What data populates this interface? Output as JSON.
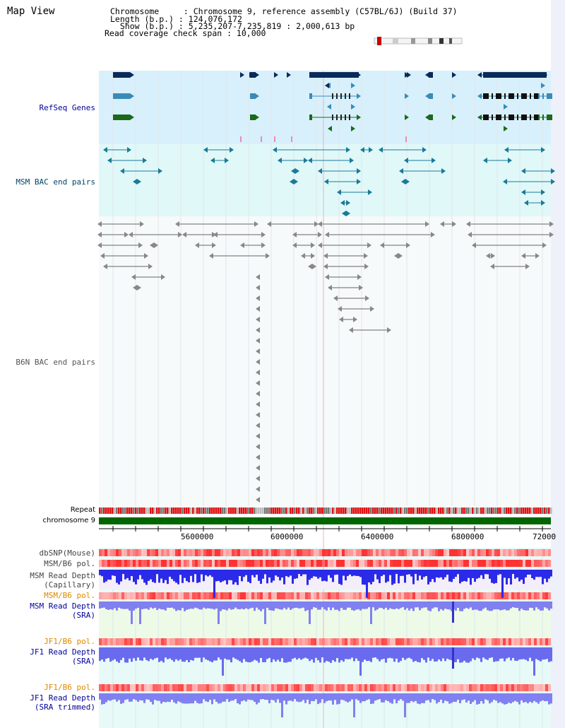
{
  "title": "Map View",
  "info": {
    "chromosome": "Chromosome     : Chromosome 9, reference assembly (C57BL/6J) (Build 37)",
    "length": "Length (b.p.) : 124,076,172",
    "show": "  Show (b.p.) : 5,235,207-7,235,819 : 2,000,613 bp",
    "coverage": "Read coverage check span : 10,000"
  },
  "tracks": {
    "refseq": "RefSeq Genes",
    "msm_bac": "MSM BAC end pairs",
    "b6n_bac": "B6N BAC end pairs",
    "repeat": "Repeat",
    "chromosome": "chromosome 9",
    "dbsnp": "dbSNP(Mouse)",
    "msm_b6_pol_1": "MSM/B6 pol.",
    "msm_read_depth_cap_1": "MSM Read Depth",
    "msm_read_depth_cap_2": "(Capillary)",
    "msm_b6_pol_2": "MSM/B6 pol.",
    "msm_read_depth_sra_1": "MSM Read Depth",
    "msm_read_depth_sra_2": "(SRA)",
    "jf1_b6_pol_1": "JF1/B6 pol.",
    "jf1_read_depth_sra_1": "JF1 Read Depth",
    "jf1_read_depth_sra_2": "(SRA)",
    "jf1_b6_pol_2": "JF1/B6 pol.",
    "jf1_read_depth_trim_1": "JF1 Read Depth",
    "jf1_read_depth_trim_2": "(SRA trimmed)"
  },
  "axis": {
    "ticks": [
      "5600000",
      "6000000",
      "6400000",
      "6800000",
      "72000"
    ]
  },
  "colors": {
    "refseq_bg": "#d8f0fb",
    "msm_bg": "#e0f8f8",
    "b6n_bg": "#f0f8f8",
    "gene_dark": "#0a2a5a",
    "gene_mid": "#3a8ab8",
    "gene_green": "#1a6a1a",
    "msm_pair": "#1a7a9a",
    "b6n_pair": "#666666",
    "chromosome": "#006600",
    "pol": "#f08080",
    "depth_cap": "#2a2ae8",
    "depth_sra": "#8080f0",
    "label_blue": "#000099",
    "label_orange": "#dd8800",
    "label_teal": "#004466"
  }
}
